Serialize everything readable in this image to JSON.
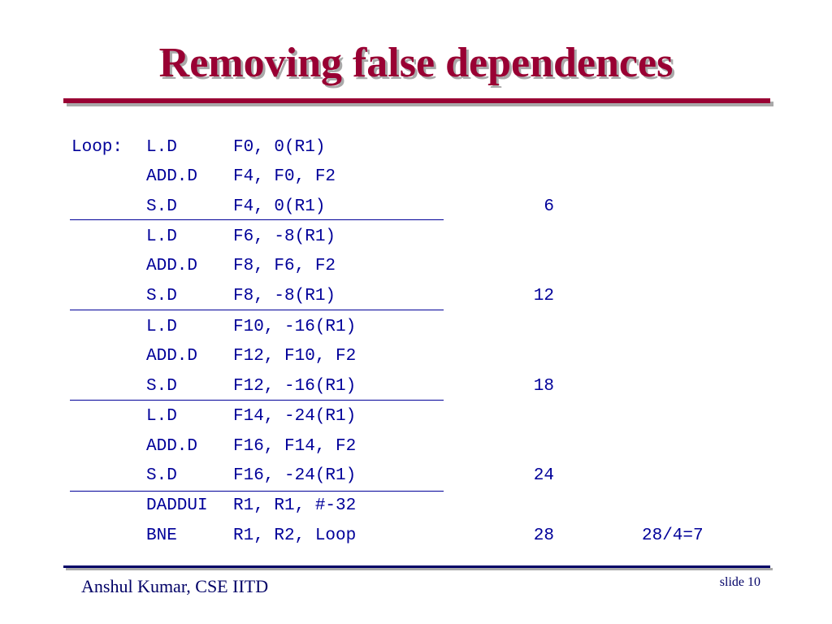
{
  "slide": {
    "title": "Removing false dependences",
    "footer_author": "Anshul Kumar, CSE IITD",
    "footer_slide": "slide 10"
  },
  "code": {
    "rows": [
      {
        "label": "Loop:",
        "op": "L.D",
        "args": "F0, 0(R1)",
        "count": "",
        "note": ""
      },
      {
        "label": "",
        "op": "ADD.D",
        "args": "F4, F0, F2",
        "count": "",
        "note": ""
      },
      {
        "label": "",
        "op": "S.D",
        "args": "F4, 0(R1)",
        "count": "6",
        "note": ""
      },
      {
        "label": "",
        "op": "L.D",
        "args": "F6, -8(R1)",
        "count": "",
        "note": ""
      },
      {
        "label": "",
        "op": "ADD.D",
        "args": "F8, F6, F2",
        "count": "",
        "note": ""
      },
      {
        "label": "",
        "op": "S.D",
        "args": "F8, -8(R1)",
        "count": "12",
        "note": ""
      },
      {
        "label": "",
        "op": "L.D",
        "args": "F10, -16(R1)",
        "count": "",
        "note": ""
      },
      {
        "label": "",
        "op": "ADD.D",
        "args": "F12, F10, F2",
        "count": "",
        "note": ""
      },
      {
        "label": "",
        "op": "S.D",
        "args": "F12, -16(R1)",
        "count": "18",
        "note": ""
      },
      {
        "label": "",
        "op": "L.D",
        "args": "F14, -24(R1)",
        "count": "",
        "note": ""
      },
      {
        "label": "",
        "op": "ADD.D",
        "args": "F16, F14, F2",
        "count": "",
        "note": ""
      },
      {
        "label": "",
        "op": "S.D",
        "args": "F16, -24(R1)",
        "count": "24",
        "note": ""
      },
      {
        "label": "",
        "op": "DADDUI",
        "args": "R1, R1, #-32",
        "count": "",
        "note": ""
      },
      {
        "label": "",
        "op": "BNE",
        "args": "R1, R2, Loop",
        "count": "28",
        "note": "28/4=7"
      }
    ]
  },
  "colors": {
    "title": "#990033",
    "code": "#000099",
    "footer": "#000066"
  }
}
